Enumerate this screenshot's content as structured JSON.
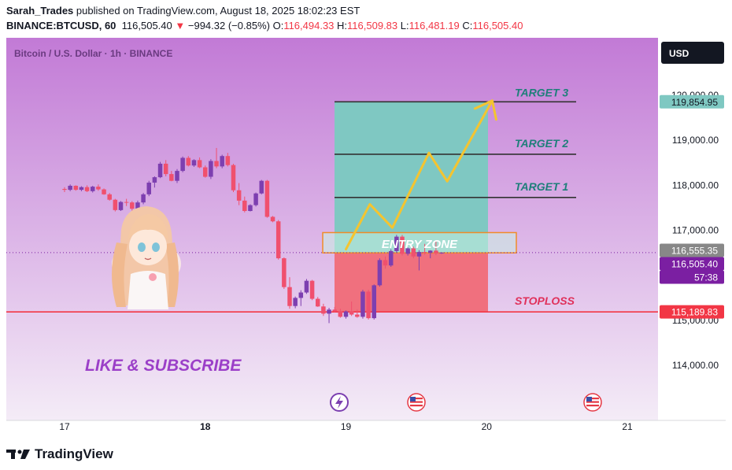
{
  "header": {
    "author": "Sarah_Trades",
    "published_text": "published on TradingView.com, August 18, 2025 18:02:23 EST",
    "symbol": "BINANCE:BTCUSD, 60",
    "last": "116,505.40",
    "change_arrow": "▼",
    "change": "−994.32 (−0.85%)",
    "o_label": "O:",
    "o": "116,494.33",
    "h_label": "H:",
    "h": "116,509.83",
    "l_label": "L:",
    "l": "116,481.19",
    "c_label": "C:",
    "c": "116,505.40"
  },
  "chart_title": "Bitcoin / U.S. Dollar · 1h · BINANCE",
  "currency_button": "USD",
  "colors": {
    "background_top": "#c27ad6",
    "background_bottom": "#f4ecf7",
    "up_candle": "#7d3fb0",
    "down_candle": "#f0506e",
    "target_zone": "#7fc8c2",
    "stop_zone": "#f0707e",
    "entry_border": "#f08c28",
    "arrow": "#f4c430",
    "annotation_text": "#1f7f7a",
    "stoploss_text": "#e0305a",
    "like_text": "#9b3fc8"
  },
  "footer_logo": "TradingView",
  "chart_data": {
    "type": "candlestick",
    "title": "Bitcoin / U.S. Dollar · 1h · BINANCE",
    "x_ticks": [
      "17",
      "18",
      "19",
      "20",
      "21"
    ],
    "y_ticks": [
      "120,000.00",
      "119,000.00",
      "118,000.00",
      "117,000.00",
      "116,000.00",
      "115,000.00",
      "114,000.00"
    ],
    "ylim": [
      113000,
      120600
    ],
    "price_tags": [
      {
        "label": "119,854.95",
        "value": 119854.95,
        "color": "#7fc8c2",
        "text_color": "#131722"
      },
      {
        "label": "116,555.35",
        "value": 116555.35,
        "color": "#888888",
        "text_color": "#ffffff"
      },
      {
        "label": "116,505.40",
        "value": 116505.4,
        "color": "#7b1fa2",
        "text_color": "#ffffff"
      },
      {
        "label": "57:38",
        "value": 116260,
        "color": "#7b1fa2",
        "text_color": "#ffffff"
      },
      {
        "label": "115,189.83",
        "value": 115189.83,
        "color": "#f23645",
        "text_color": "#ffffff"
      }
    ],
    "annotations": {
      "target3": {
        "label": "TARGET 3",
        "value": 119854.95
      },
      "target2": {
        "label": "TARGET 2",
        "value": 118690
      },
      "target1": {
        "label": "TARGET 1",
        "value": 117730
      },
      "entry": {
        "label": "ENTRY ZONE",
        "low": 116500,
        "high": 116950
      },
      "stoploss": {
        "label": "STOPLOSS",
        "value": 115189.83
      },
      "like": "LIKE & SUBSCRIBE"
    },
    "arrow_path": [
      [
        19.0,
        116580
      ],
      [
        19.17,
        117580
      ],
      [
        19.33,
        117060
      ],
      [
        19.59,
        118720
      ],
      [
        19.72,
        118090
      ],
      [
        20.04,
        119880
      ]
    ],
    "candles": [
      [
        17.0,
        117920,
        117960,
        117850,
        117900
      ],
      [
        17.04,
        117900,
        118020,
        117870,
        117990
      ],
      [
        17.08,
        117990,
        118000,
        117880,
        117900
      ],
      [
        17.12,
        117900,
        117980,
        117870,
        117960
      ],
      [
        17.16,
        117960,
        118000,
        117850,
        117870
      ],
      [
        17.2,
        117870,
        117990,
        117840,
        117970
      ],
      [
        17.24,
        117970,
        118020,
        117880,
        117910
      ],
      [
        17.28,
        117910,
        117930,
        117790,
        117800
      ],
      [
        17.32,
        117800,
        117830,
        117660,
        117680
      ],
      [
        17.36,
        117680,
        117700,
        117420,
        117450
      ],
      [
        17.4,
        117450,
        117650,
        117430,
        117630
      ],
      [
        17.44,
        117630,
        117700,
        117540,
        117620
      ],
      [
        17.48,
        117620,
        117650,
        117440,
        117480
      ],
      [
        17.52,
        117480,
        117660,
        117420,
        117620
      ],
      [
        17.56,
        117620,
        117830,
        117580,
        117800
      ],
      [
        17.6,
        117800,
        118100,
        117760,
        118060
      ],
      [
        17.64,
        118060,
        118200,
        117950,
        118180
      ],
      [
        17.68,
        118180,
        118520,
        118160,
        118480
      ],
      [
        17.72,
        118480,
        118560,
        118200,
        118250
      ],
      [
        17.76,
        118250,
        118320,
        118090,
        118100
      ],
      [
        17.8,
        118100,
        118360,
        118050,
        118320
      ],
      [
        17.84,
        118320,
        118640,
        118290,
        118610
      ],
      [
        17.88,
        118610,
        118650,
        118420,
        118440
      ],
      [
        17.92,
        118440,
        118580,
        118410,
        118560
      ],
      [
        17.96,
        118560,
        118620,
        118380,
        118400
      ],
      [
        18.0,
        118400,
        118440,
        118170,
        118190
      ],
      [
        18.04,
        118190,
        118580,
        118140,
        118540
      ],
      [
        18.08,
        118540,
        118830,
        118380,
        118420
      ],
      [
        18.12,
        118420,
        118680,
        118380,
        118650
      ],
      [
        18.16,
        118650,
        118720,
        118420,
        118450
      ],
      [
        18.2,
        118450,
        118480,
        117850,
        117890
      ],
      [
        18.24,
        117890,
        118050,
        117560,
        117660
      ],
      [
        18.28,
        117660,
        117750,
        117400,
        117430
      ],
      [
        18.32,
        117430,
        117580,
        117420,
        117560
      ],
      [
        18.36,
        117560,
        117840,
        117530,
        117820
      ],
      [
        18.4,
        117820,
        118120,
        117800,
        118100
      ],
      [
        18.44,
        118100,
        118120,
        117280,
        117300
      ],
      [
        18.48,
        117300,
        117320,
        117180,
        117200
      ],
      [
        18.52,
        117200,
        117230,
        116350,
        116380
      ],
      [
        18.56,
        116380,
        116400,
        115700,
        115740
      ],
      [
        18.6,
        115740,
        115960,
        115260,
        115320
      ],
      [
        18.64,
        115320,
        115530,
        115270,
        115500
      ],
      [
        18.68,
        115500,
        115670,
        115320,
        115620
      ],
      [
        18.72,
        115620,
        115920,
        115590,
        115880
      ],
      [
        18.76,
        115880,
        115900,
        115450,
        115480
      ],
      [
        18.8,
        115480,
        115520,
        115300,
        115310
      ],
      [
        18.84,
        115310,
        115370,
        115100,
        115150
      ],
      [
        18.88,
        115150,
        115280,
        114940,
        115240
      ],
      [
        18.92,
        115240,
        115300,
        115180,
        115200
      ],
      [
        18.96,
        115200,
        115260,
        115060,
        115080
      ],
      [
        19.0,
        115080,
        115220,
        115040,
        115200
      ],
      [
        19.04,
        115200,
        115420,
        115100,
        115130
      ],
      [
        19.08,
        115130,
        115240,
        115060,
        115080
      ],
      [
        19.12,
        115080,
        115680,
        115040,
        115640
      ],
      [
        19.16,
        115640,
        115680,
        115020,
        115050
      ],
      [
        19.2,
        115050,
        115800,
        115020,
        115780
      ],
      [
        19.24,
        115780,
        116380,
        115750,
        116340
      ],
      [
        19.28,
        116340,
        116420,
        116150,
        116220
      ],
      [
        19.32,
        116220,
        116580,
        116190,
        116540
      ],
      [
        19.36,
        116540,
        116900,
        116500,
        116860
      ],
      [
        19.4,
        116860,
        116900,
        116440,
        116480
      ],
      [
        19.44,
        116480,
        116620,
        116440,
        116600
      ],
      [
        19.48,
        116600,
        116640,
        116380,
        116420
      ],
      [
        19.52,
        116420,
        116560,
        116110,
        116520
      ],
      [
        19.56,
        116520,
        116700,
        116460,
        116500
      ],
      [
        19.6,
        116500,
        116560,
        116380,
        116550
      ],
      [
        19.64,
        116550,
        116750,
        116450,
        116490
      ],
      [
        19.68,
        116490,
        116510,
        116480,
        116505
      ]
    ]
  }
}
